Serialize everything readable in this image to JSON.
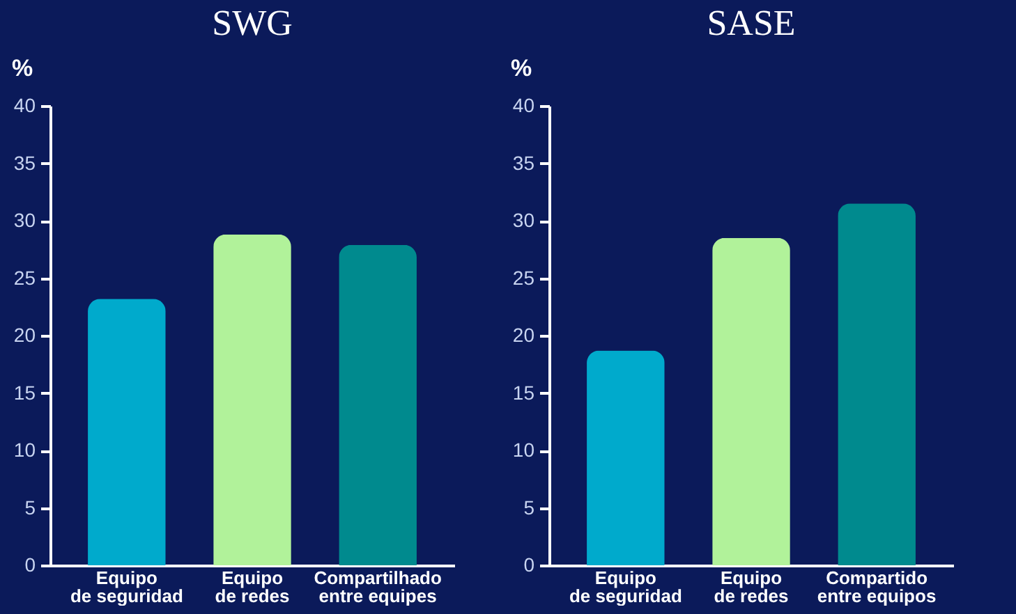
{
  "chart_data": [
    {
      "type": "bar",
      "title": "SWG",
      "ylabel": "%",
      "categories": [
        "Equipo de seguridad",
        "Equipo de redes",
        "Compartilhado entre equipes"
      ],
      "values": [
        23.2,
        28.8,
        27.9
      ],
      "colors": [
        "#00aacc",
        "#b1f29a",
        "#008a8e"
      ],
      "ylim": [
        0,
        40
      ],
      "yticks": [
        0,
        5,
        10,
        15,
        20,
        25,
        30,
        35,
        40
      ],
      "grid": false,
      "legend": false
    },
    {
      "type": "bar",
      "title": "SASE",
      "ylabel": "%",
      "categories": [
        "Equipo de seguridad",
        "Equipo de redes",
        "Compartido entre equipos"
      ],
      "values": [
        18.7,
        28.5,
        31.5
      ],
      "colors": [
        "#00aacc",
        "#b1f29a",
        "#008a8e"
      ],
      "ylim": [
        0,
        40
      ],
      "yticks": [
        0,
        5,
        10,
        15,
        20,
        25,
        30,
        35,
        40
      ],
      "grid": false,
      "legend": false
    }
  ]
}
